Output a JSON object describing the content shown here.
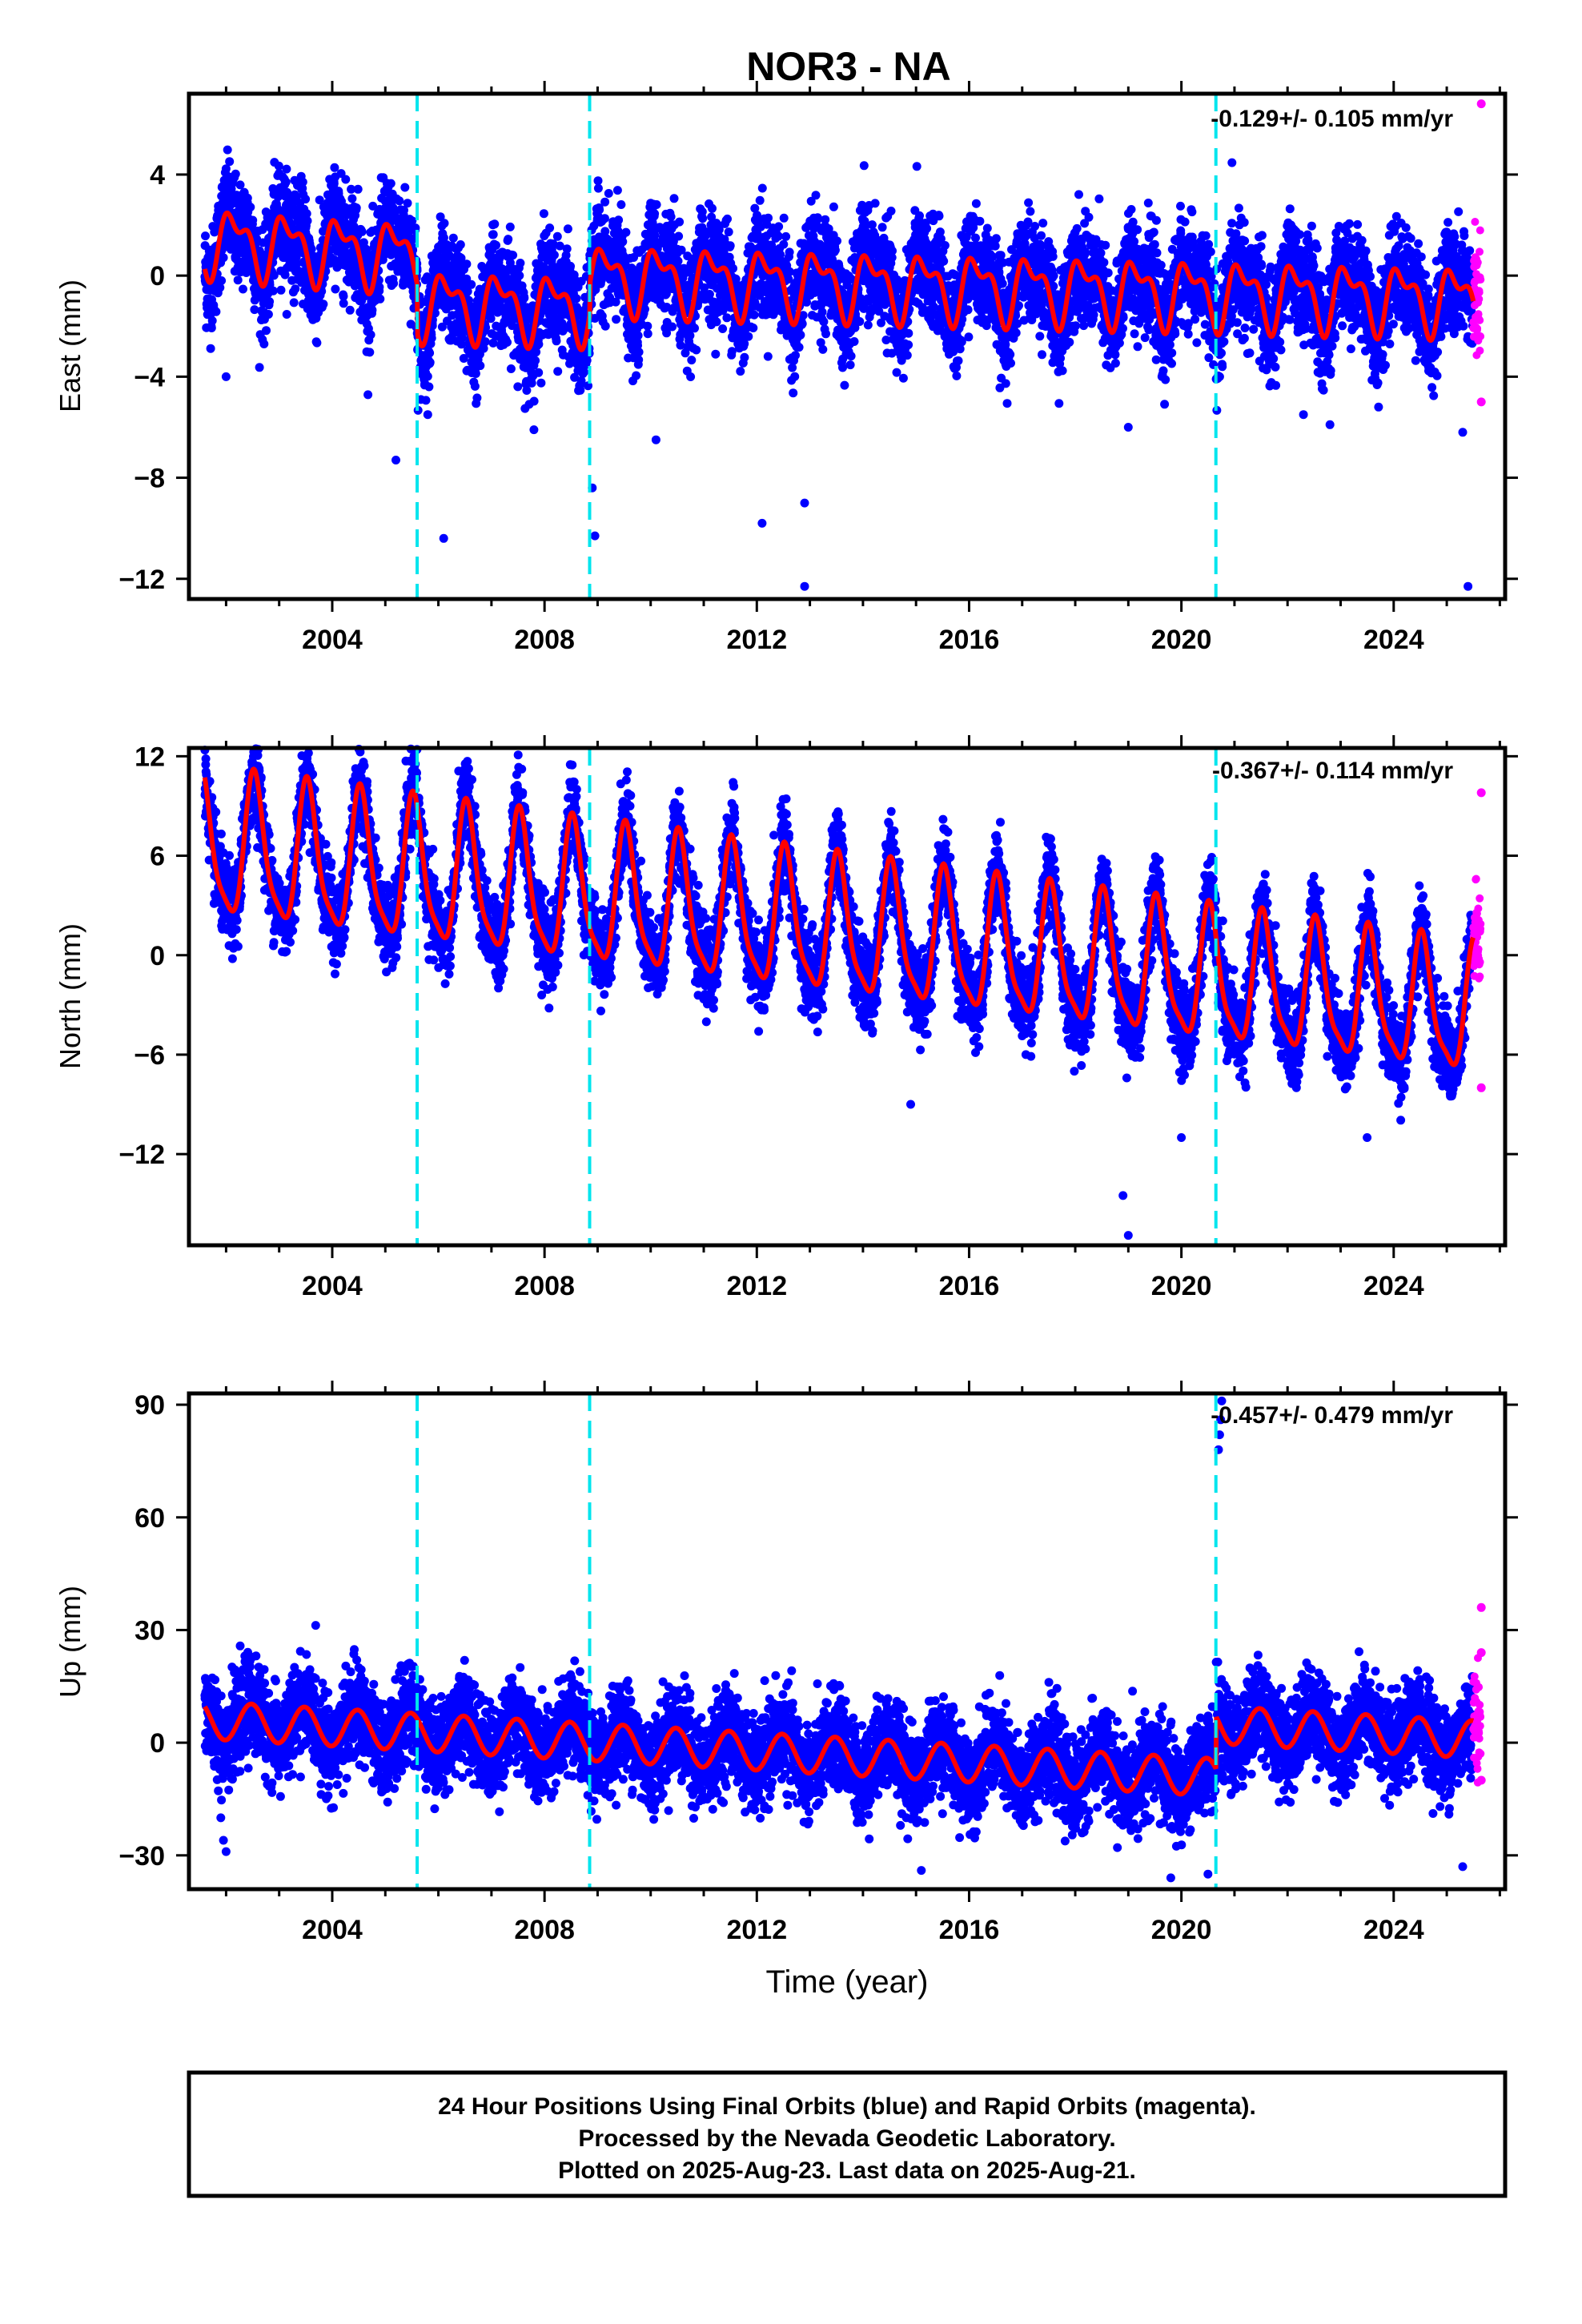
{
  "title": "NOR3 - NA",
  "xlabel": "Time (year)",
  "caption": [
    "24 Hour Positions Using Final Orbits (blue) and Rapid Orbits (magenta).",
    "Processed by the Nevada Geodetic Laboratory.",
    "Plotted on 2025-Aug-23. Last data on 2025-Aug-21."
  ],
  "colors": {
    "final_orbits": "#0000ff",
    "rapid_orbits": "#ff00ff",
    "model_fit": "#ff0000",
    "equipment_changes": "#00e5ee"
  },
  "chart_data": [
    {
      "type": "scatter",
      "ylabel": "East (mm)",
      "rate_label": "-0.129+/- 0.105 mm/yr",
      "xlim": [
        2001.3,
        2026.1
      ],
      "ylim": [
        -12.8,
        7.2
      ],
      "xticks": [
        2004,
        2008,
        2012,
        2016,
        2020,
        2024
      ],
      "yticks": [
        4,
        0,
        -4,
        -8,
        -12
      ],
      "ytick_labels": [
        "4",
        "0",
        "−4",
        "−8",
        "−12"
      ],
      "grid": false,
      "vertical_markers": [
        2005.6,
        2008.85,
        2020.65
      ],
      "series": [
        {
          "kind": "points",
          "color": "final_orbits",
          "x_range": [
            2001.6,
            2025.5
          ],
          "points_per_year": 340,
          "model_params": {
            "mean_before": 1.4,
            "mean_after": -0.3,
            "step_year": 2005.6,
            "trend": -0.129,
            "amp": 1.1,
            "noise": 1.0
          }
        },
        {
          "kind": "points",
          "color": "rapid_orbits",
          "x_range": [
            2025.5,
            2025.64
          ],
          "points_per_year": 300
        },
        {
          "kind": "line",
          "color": "model_fit"
        }
      ],
      "outliers": [
        [
          2002.0,
          -4.0
        ],
        [
          2005.2,
          -7.3
        ],
        [
          2005.8,
          -5.5
        ],
        [
          2006.1,
          -10.4
        ],
        [
          2007.8,
          -6.1
        ],
        [
          2008.9,
          -8.4
        ],
        [
          2008.95,
          -10.3
        ],
        [
          2010.1,
          -6.5
        ],
        [
          2012.1,
          -9.8
        ],
        [
          2012.9,
          -12.3
        ],
        [
          2012.9,
          -9.0
        ],
        [
          2019.0,
          -6.0
        ],
        [
          2022.3,
          -5.5
        ],
        [
          2022.8,
          -5.9
        ],
        [
          2025.3,
          -6.2
        ],
        [
          2025.4,
          -12.3
        ],
        [
          2025.65,
          -5.0
        ],
        [
          2025.65,
          6.8
        ]
      ]
    },
    {
      "type": "scatter",
      "ylabel": "North (mm)",
      "rate_label": "-0.367+/- 0.114 mm/yr",
      "xlim": [
        2001.3,
        2026.1
      ],
      "ylim": [
        -17.5,
        12.5
      ],
      "xticks": [
        2004,
        2008,
        2012,
        2016,
        2020,
        2024
      ],
      "yticks": [
        12,
        6,
        0,
        -6,
        -12
      ],
      "ytick_labels": [
        "12",
        "6",
        "0",
        "−6",
        "−12"
      ],
      "grid": false,
      "vertical_markers": [
        2005.6,
        2008.85,
        2020.65
      ],
      "series": [
        {
          "kind": "points",
          "color": "final_orbits",
          "x_range": [
            2001.6,
            2025.5
          ],
          "points_per_year": 340,
          "model_params": {
            "start": 6.5,
            "trend": -0.42,
            "amp": 4.2,
            "noise": 1.2
          }
        },
        {
          "kind": "points",
          "color": "rapid_orbits",
          "x_range": [
            2025.5,
            2025.64
          ],
          "points_per_year": 300
        },
        {
          "kind": "line",
          "color": "model_fit"
        }
      ],
      "outliers": [
        [
          2014.9,
          -9.0
        ],
        [
          2018.9,
          -14.5
        ],
        [
          2019.0,
          -16.9
        ],
        [
          2020.0,
          -11.0
        ],
        [
          2023.5,
          -11.0
        ],
        [
          2025.65,
          9.8
        ],
        [
          2025.65,
          -8.0
        ]
      ]
    },
    {
      "type": "scatter",
      "ylabel": "Up (mm)",
      "rate_label": "-0.457+/- 0.479 mm/yr",
      "xlim": [
        2001.3,
        2026.1
      ],
      "ylim": [
        -39,
        93
      ],
      "xticks": [
        2004,
        2008,
        2012,
        2016,
        2020,
        2024
      ],
      "yticks": [
        90,
        60,
        30,
        0,
        -30
      ],
      "ytick_labels": [
        "90",
        "60",
        "30",
        "0",
        "−30"
      ],
      "grid": false,
      "vertical_markers": [
        2005.6,
        2008.85,
        2020.65
      ],
      "series": [
        {
          "kind": "points",
          "color": "final_orbits",
          "x_range": [
            2001.6,
            2025.5
          ],
          "points_per_year": 340,
          "model_params": {
            "start": 6.0,
            "trend": -0.8,
            "amp": 5.0,
            "noise": 6.0,
            "step_year": 2020.65,
            "step": 14.0
          }
        },
        {
          "kind": "points",
          "color": "rapid_orbits",
          "x_range": [
            2025.5,
            2025.64
          ],
          "points_per_year": 300
        },
        {
          "kind": "line",
          "color": "model_fit"
        }
      ],
      "outliers": [
        [
          2001.9,
          -20.0
        ],
        [
          2001.95,
          -26.0
        ],
        [
          2002.0,
          -29.0
        ],
        [
          2015.1,
          -34.0
        ],
        [
          2019.8,
          -36.0
        ],
        [
          2020.5,
          -35.0
        ],
        [
          2020.7,
          78.0
        ],
        [
          2020.72,
          82.0
        ],
        [
          2020.74,
          86.0
        ],
        [
          2020.76,
          91.0
        ],
        [
          2025.3,
          -33.0
        ],
        [
          2025.65,
          36.0
        ],
        [
          2025.65,
          24.0
        ],
        [
          2025.65,
          -10.0
        ]
      ]
    }
  ]
}
